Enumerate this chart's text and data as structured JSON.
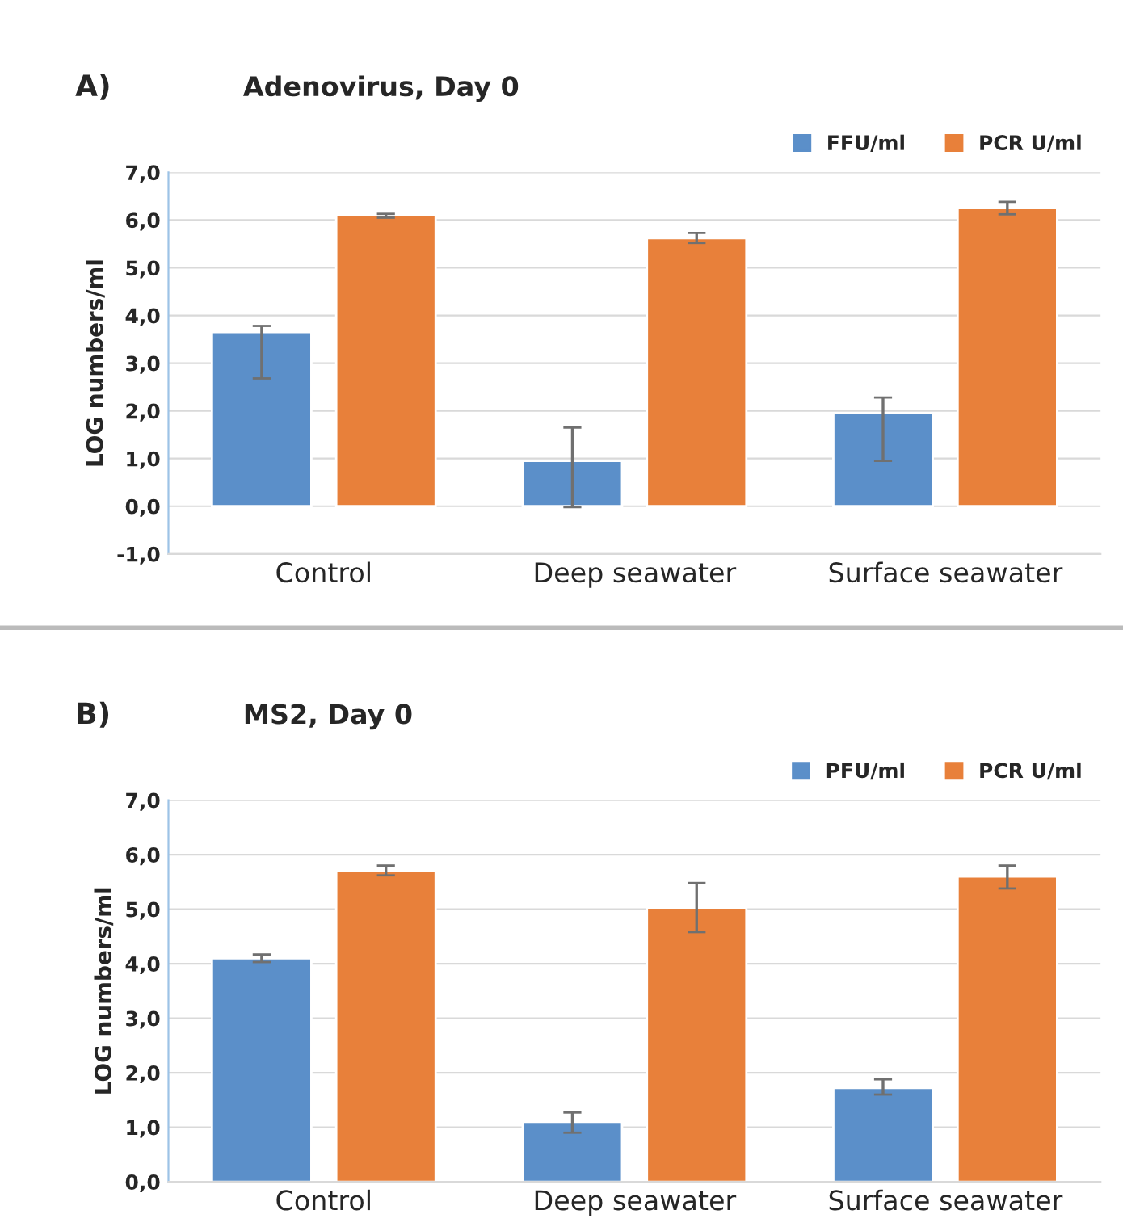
{
  "chart_data": [
    {
      "type": "bar",
      "title": "Adenovirus, Day 0",
      "annotations": [
        "A)"
      ],
      "ylabel": "LOG numbers/ml",
      "categories": [
        "Control",
        "Deep seawater",
        "Surface seawater"
      ],
      "series": [
        {
          "name": "FFU/ml",
          "color": "#5b8fc9",
          "values": [
            3.65,
            0.95,
            1.95
          ],
          "errors": [
            [
              2.68,
              3.78
            ],
            [
              -0.02,
              1.65
            ],
            [
              0.95,
              2.28
            ]
          ]
        },
        {
          "name": "PCR U/ml",
          "color": "#e8803a",
          "values": [
            6.1,
            5.62,
            6.25
          ],
          "errors": [
            [
              6.05,
              6.13
            ],
            [
              5.52,
              5.73
            ],
            [
              6.12,
              6.38
            ]
          ]
        }
      ],
      "ylim": [
        -1,
        7
      ],
      "yticks": [
        {
          "value": -1,
          "label": "-1,0"
        },
        {
          "value": 0,
          "label": "0,0"
        },
        {
          "value": 1,
          "label": "1,0"
        },
        {
          "value": 2,
          "label": "2,0"
        },
        {
          "value": 3,
          "label": "3,0"
        },
        {
          "value": 4,
          "label": "4,0"
        },
        {
          "value": 5,
          "label": "5,0"
        },
        {
          "value": 6,
          "label": "6,0"
        },
        {
          "value": 7,
          "label": "7,0"
        }
      ],
      "grid": "y",
      "legend": "top right"
    },
    {
      "type": "bar",
      "title": "MS2, Day 0",
      "annotations": [
        "B)"
      ],
      "ylabel": "LOG numbers/ml",
      "categories": [
        "Control",
        "Deep seawater",
        "Surface seawater"
      ],
      "series": [
        {
          "name": "PFU/ml",
          "color": "#5b8fc9",
          "values": [
            4.1,
            1.1,
            1.72
          ],
          "errors": [
            [
              4.03,
              4.17
            ],
            [
              0.9,
              1.27
            ],
            [
              1.6,
              1.88
            ]
          ]
        },
        {
          "name": "PCR U/ml",
          "color": "#e8803a",
          "values": [
            5.7,
            5.03,
            5.6
          ],
          "errors": [
            [
              5.62,
              5.8
            ],
            [
              4.58,
              5.48
            ],
            [
              5.38,
              5.8
            ]
          ]
        }
      ],
      "ylim": [
        0,
        7
      ],
      "yticks": [
        {
          "value": 0,
          "label": "0,0"
        },
        {
          "value": 1,
          "label": "1,0"
        },
        {
          "value": 2,
          "label": "2,0"
        },
        {
          "value": 3,
          "label": "3,0"
        },
        {
          "value": 4,
          "label": "4,0"
        },
        {
          "value": 5,
          "label": "5,0"
        },
        {
          "value": 6,
          "label": "6,0"
        },
        {
          "value": 7,
          "label": "7,0"
        }
      ],
      "grid": "y",
      "legend": "top right"
    }
  ]
}
